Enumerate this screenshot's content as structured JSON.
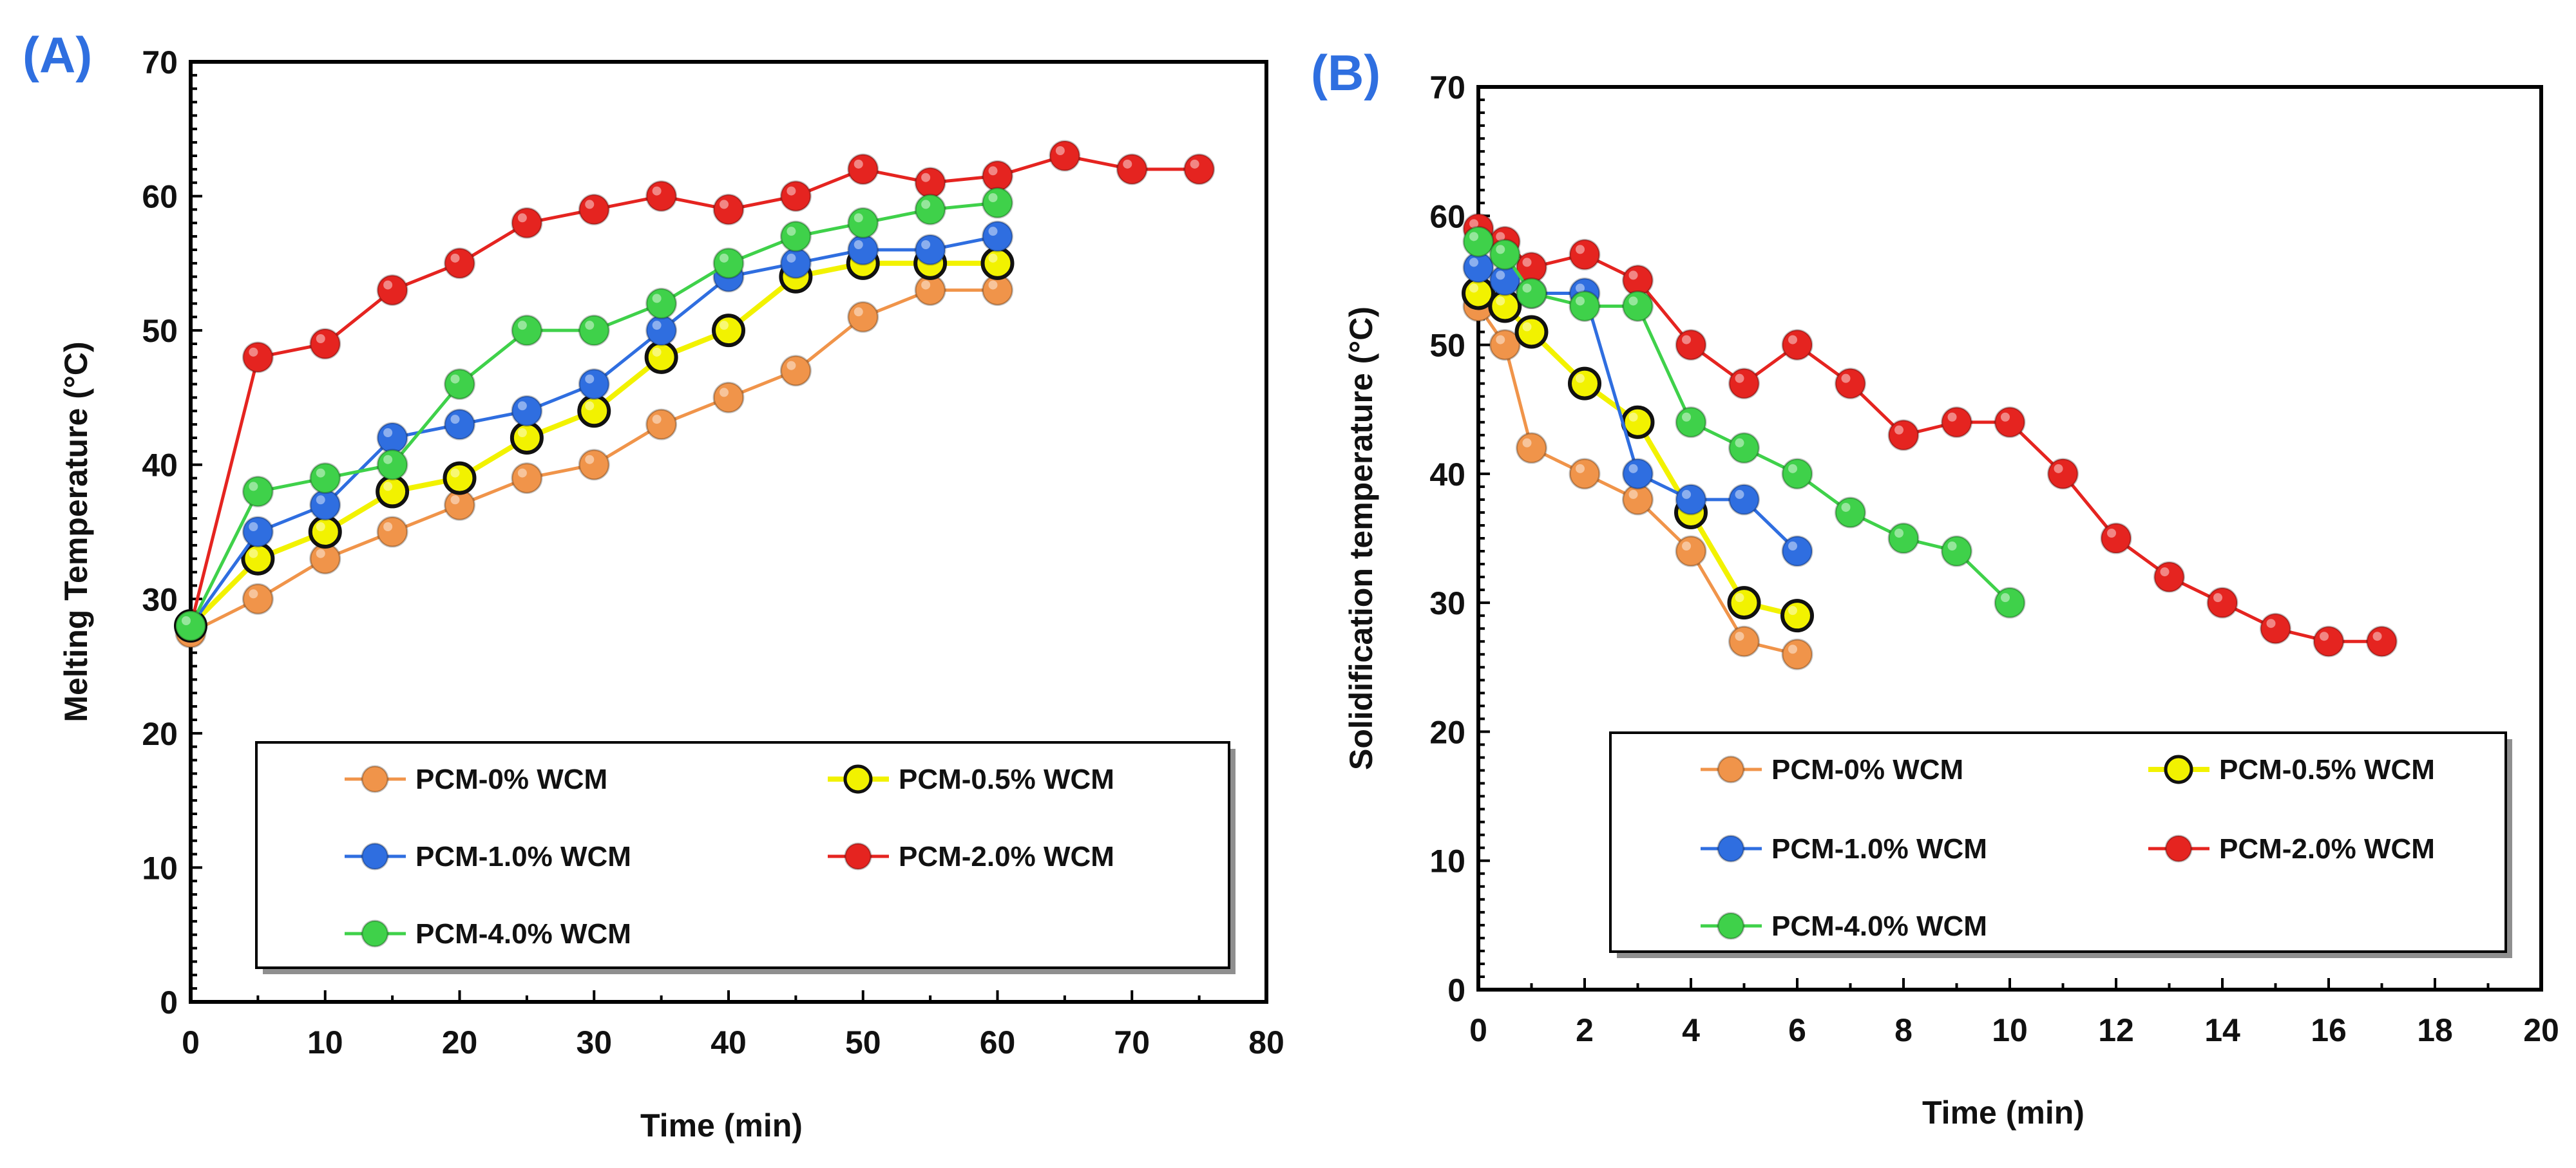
{
  "chart_data": [
    {
      "panel_label": "(A)",
      "type": "line",
      "xlabel": "Time (min)",
      "ylabel": "Melting Temperature  (°C)",
      "xlim": [
        0,
        80
      ],
      "ylim": [
        0,
        70
      ],
      "xticks": [
        0,
        10,
        20,
        30,
        40,
        50,
        60,
        70,
        80
      ],
      "yticks": [
        0,
        10,
        20,
        30,
        40,
        50,
        60,
        70
      ],
      "legend_position": "bottom",
      "series": [
        {
          "name": "PCM-0% WCM",
          "color": "#f0944a",
          "line_color": "#f0944a",
          "x": [
            0,
            5,
            10,
            15,
            20,
            25,
            30,
            35,
            40,
            45,
            50,
            55,
            60
          ],
          "y": [
            27.5,
            30,
            33,
            35,
            37,
            39,
            40,
            43,
            45,
            47,
            51,
            53,
            53
          ]
        },
        {
          "name": "PCM-0.5% WCM",
          "color": "#f2f200",
          "line_color": "#f2f200",
          "x": [
            0,
            5,
            10,
            15,
            20,
            25,
            30,
            35,
            40,
            45,
            50,
            55,
            60
          ],
          "y": [
            28,
            33,
            35,
            38,
            39,
            42,
            44,
            48,
            50,
            54,
            55,
            55,
            55
          ]
        },
        {
          "name": "PCM-1.0% WCM",
          "color": "#2f6ee0",
          "line_color": "#2f6ee0",
          "x": [
            0,
            5,
            10,
            15,
            20,
            25,
            30,
            35,
            40,
            45,
            50,
            55,
            60
          ],
          "y": [
            28,
            35,
            37,
            42,
            43,
            44,
            46,
            50,
            54,
            55,
            56,
            56,
            57
          ]
        },
        {
          "name": "PCM-2.0% WCM",
          "color": "#e52420",
          "line_color": "#e52420",
          "x": [
            0,
            5,
            10,
            15,
            20,
            25,
            30,
            35,
            40,
            45,
            50,
            55,
            60,
            65,
            70,
            75
          ],
          "y": [
            28,
            48,
            49,
            53,
            55,
            58,
            59,
            60,
            59,
            60,
            62,
            61,
            61.5,
            63,
            62,
            62
          ]
        },
        {
          "name": "PCM-4.0% WCM",
          "color": "#3fd14a",
          "line_color": "#3fd14a",
          "x": [
            0,
            5,
            10,
            15,
            20,
            25,
            30,
            35,
            40,
            45,
            50,
            55,
            60
          ],
          "y": [
            28,
            38,
            39,
            40,
            46,
            50,
            50,
            52,
            55,
            57,
            58,
            59,
            59.5
          ]
        }
      ]
    },
    {
      "panel_label": "(B)",
      "type": "line",
      "xlabel": "Time (min)",
      "ylabel": "Solidification temperature (°C)",
      "xlim": [
        0,
        20
      ],
      "ylim": [
        0,
        70
      ],
      "xticks": [
        0,
        2,
        4,
        6,
        8,
        10,
        12,
        14,
        16,
        18,
        20
      ],
      "yticks": [
        0,
        10,
        20,
        30,
        40,
        50,
        60,
        70
      ],
      "legend_position": "bottom",
      "series": [
        {
          "name": "PCM-0% WCM",
          "color": "#f0944a",
          "line_color": "#f0944a",
          "x": [
            0,
            0.5,
            1,
            2,
            3,
            4,
            5,
            6
          ],
          "y": [
            53,
            50,
            42,
            40,
            38,
            34,
            27,
            26
          ]
        },
        {
          "name": "PCM-0.5% WCM",
          "color": "#f2f200",
          "line_color": "#f2f200",
          "x": [
            0,
            0.5,
            1,
            2,
            3,
            4,
            5,
            6
          ],
          "y": [
            54,
            53,
            51,
            47,
            44,
            37,
            30,
            29
          ]
        },
        {
          "name": "PCM-1.0% WCM",
          "color": "#2f6ee0",
          "line_color": "#2f6ee0",
          "x": [
            0,
            0.5,
            1,
            2,
            3,
            4,
            5,
            6
          ],
          "y": [
            56,
            55,
            54,
            54,
            40,
            38,
            38,
            34
          ]
        },
        {
          "name": "PCM-2.0% WCM",
          "color": "#e52420",
          "line_color": "#e52420",
          "x": [
            0,
            0.5,
            1,
            2,
            3,
            4,
            5,
            6,
            7,
            8,
            9,
            10,
            11,
            12,
            13,
            14,
            15,
            16,
            17
          ],
          "y": [
            59,
            58,
            56,
            57,
            55,
            50,
            47,
            50,
            47,
            43,
            44,
            44,
            40,
            35,
            32,
            30,
            28,
            27,
            27
          ]
        },
        {
          "name": "PCM-4.0% WCM",
          "color": "#3fd14a",
          "line_color": "#3fd14a",
          "x": [
            0,
            0.5,
            1,
            2,
            3,
            4,
            5,
            6,
            7,
            8,
            9,
            10
          ],
          "y": [
            58,
            57,
            54,
            53,
            53,
            44,
            42,
            40,
            37,
            35,
            34,
            30
          ]
        }
      ]
    }
  ]
}
